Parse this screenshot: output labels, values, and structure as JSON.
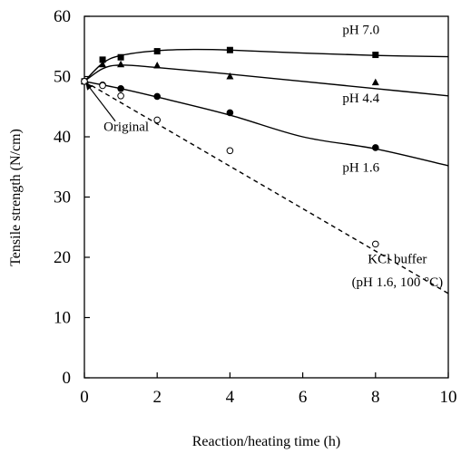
{
  "chart_data": {
    "type": "scatter",
    "xlabel": "Reaction/heating time (h)",
    "ylabel": "Tensile strength (N/cm)",
    "xlim": [
      0,
      10
    ],
    "ylim": [
      0,
      60
    ],
    "xticks": [
      0,
      2,
      4,
      6,
      8,
      10
    ],
    "yticks": [
      0,
      10,
      20,
      30,
      40,
      50,
      60
    ],
    "grid": false,
    "series": [
      {
        "name": "pH 7.0",
        "marker": "square",
        "filled": true,
        "line": "solid",
        "points": [
          [
            0,
            49.2
          ],
          [
            0.5,
            52.8
          ],
          [
            1,
            53.2
          ],
          [
            2,
            54.2
          ],
          [
            4,
            54.4
          ],
          [
            8,
            53.6
          ]
        ],
        "curve": [
          [
            0,
            49.2
          ],
          [
            0.5,
            52.2
          ],
          [
            1,
            53.5
          ],
          [
            2,
            54.3
          ],
          [
            3,
            54.5
          ],
          [
            4,
            54.4
          ],
          [
            6,
            53.9
          ],
          [
            8,
            53.5
          ],
          [
            10,
            53.3
          ]
        ]
      },
      {
        "name": "pH 4.4",
        "marker": "triangle",
        "filled": true,
        "line": "solid",
        "points": [
          [
            0,
            49.2
          ],
          [
            0.5,
            52.0
          ],
          [
            1,
            52.0
          ],
          [
            2,
            51.8
          ],
          [
            4,
            50.0
          ],
          [
            8,
            49.0
          ]
        ],
        "curve": [
          [
            0,
            49.2
          ],
          [
            0.5,
            51.3
          ],
          [
            1,
            51.9
          ],
          [
            2,
            51.5
          ],
          [
            4,
            50.4
          ],
          [
            6,
            49.2
          ],
          [
            8,
            48.0
          ],
          [
            10,
            46.8
          ]
        ]
      },
      {
        "name": "pH 1.6",
        "marker": "circle",
        "filled": true,
        "line": "solid",
        "points": [
          [
            0,
            49.2
          ],
          [
            0.5,
            48.6
          ],
          [
            1,
            48.0
          ],
          [
            2,
            46.7
          ],
          [
            4,
            44.0
          ],
          [
            8,
            38.2
          ]
        ],
        "curve": [
          [
            0,
            49.2
          ],
          [
            1,
            48.0
          ],
          [
            2,
            46.6
          ],
          [
            4,
            43.6
          ],
          [
            6,
            40.0
          ],
          [
            8,
            38.0
          ],
          [
            10,
            35.2
          ]
        ]
      },
      {
        "name": "KCl buffer (pH 1.6, 100 °C)",
        "marker": "circle",
        "filled": false,
        "line": "dashed",
        "points": [
          [
            0,
            49.2
          ],
          [
            0.5,
            48.5
          ],
          [
            1,
            46.8
          ],
          [
            2,
            42.8
          ],
          [
            4,
            37.7
          ],
          [
            8,
            22.2
          ]
        ],
        "curve": [
          [
            0,
            49.2
          ],
          [
            10,
            14.0
          ]
        ]
      }
    ],
    "annotations": [
      {
        "text": "pH 7.0",
        "x": 7.6,
        "y": 57.1
      },
      {
        "text": "pH 4.4",
        "x": 7.6,
        "y": 45.7
      },
      {
        "text": "pH 1.6",
        "x": 7.6,
        "y": 34.2
      },
      {
        "text": "KCl buffer",
        "x": 8.6,
        "y": 19.0
      },
      {
        "text": "(pH 1.6, 100 °C)",
        "x": 8.6,
        "y": 15.2
      },
      {
        "text": "Original",
        "x": 1.15,
        "y": 41.0
      }
    ],
    "arrow": {
      "from": [
        0.85,
        42.6
      ],
      "to": [
        0.05,
        48.9
      ]
    }
  }
}
